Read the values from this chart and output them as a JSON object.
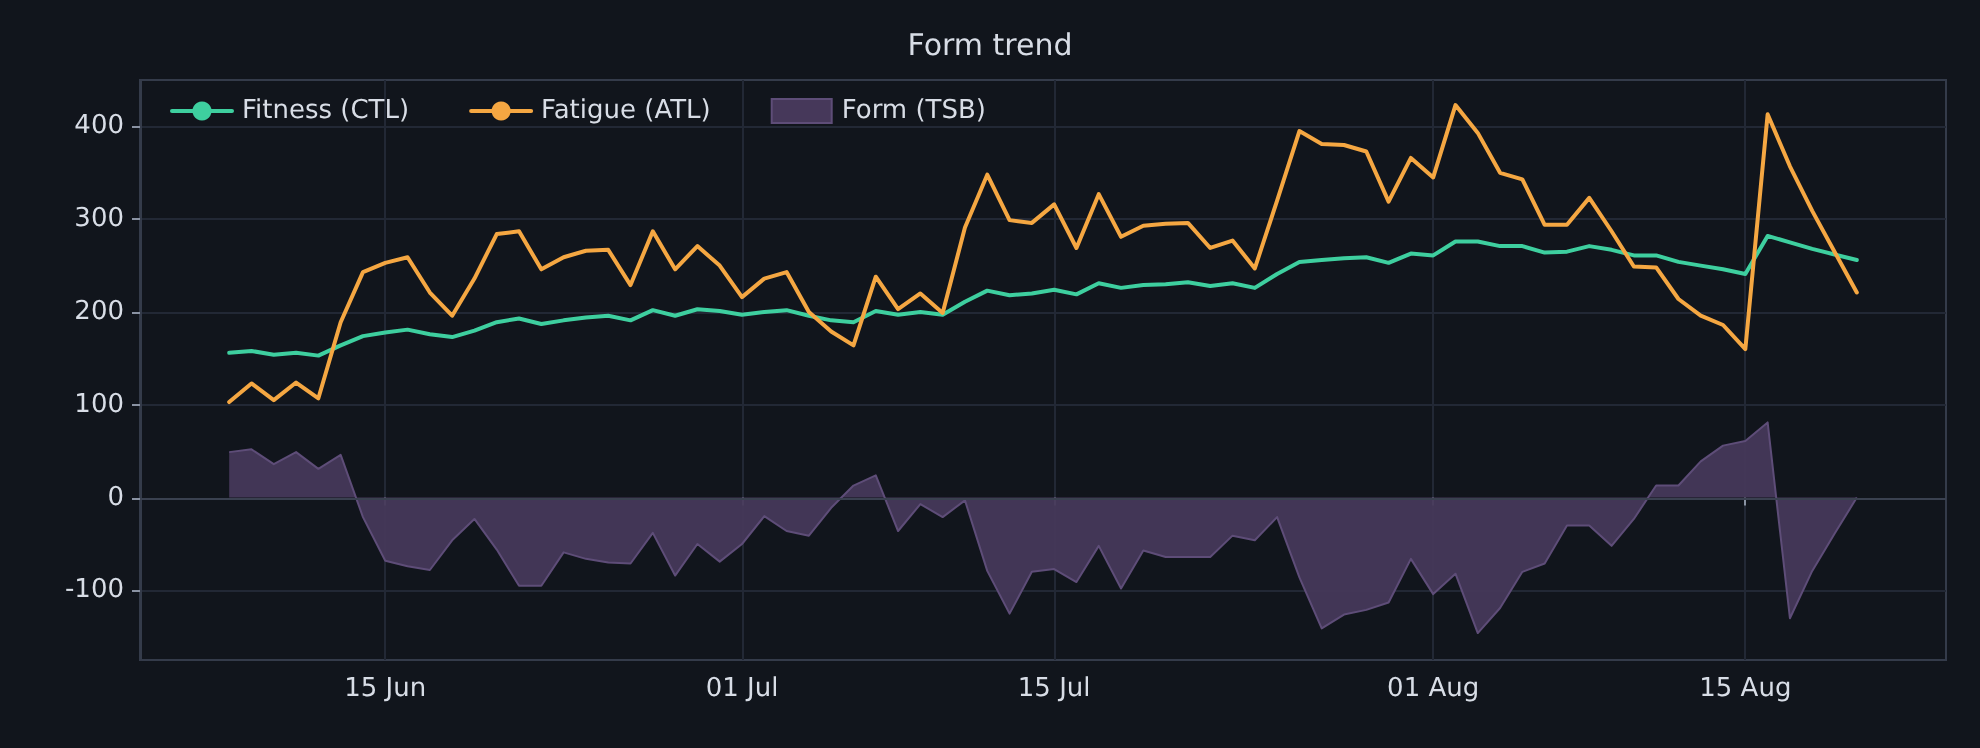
{
  "chart_data": {
    "type": "line",
    "title": "Form trend",
    "x": [
      "--06-08",
      "--06-09",
      "--06-10",
      "--06-11",
      "--06-12",
      "--06-13",
      "--06-14",
      "--06-15",
      "--06-16",
      "--06-17",
      "--06-18",
      "--06-19",
      "--06-20",
      "--06-21",
      "--06-22",
      "--06-23",
      "--06-24",
      "--06-25",
      "--06-26",
      "--06-27",
      "--06-28",
      "--06-29",
      "--06-30",
      "--07-01",
      "--07-02",
      "--07-03",
      "--07-04",
      "--07-05",
      "--07-06",
      "--07-07",
      "--07-08",
      "--07-09",
      "--07-10",
      "--07-11",
      "--07-12",
      "--07-13",
      "--07-14",
      "--07-15",
      "--07-16",
      "--07-17",
      "--07-18",
      "--07-19",
      "--07-20",
      "--07-21",
      "--07-22",
      "--07-23",
      "--07-24",
      "--07-25",
      "--07-26",
      "--07-27",
      "--07-28",
      "--07-29",
      "--07-30",
      "--07-31",
      "--08-01",
      "--08-02",
      "--08-03",
      "--08-04",
      "--08-05",
      "--08-06",
      "--08-07",
      "--08-08",
      "--08-09",
      "--08-10",
      "--08-11",
      "--08-12",
      "--08-13",
      "--08-14",
      "--08-15",
      "--08-16",
      "--08-17",
      "--08-18",
      "--08-19",
      "--08-20"
    ],
    "series": [
      {
        "name": "Fitness (CTL)",
        "color": "#3ecf9f",
        "values": [
          156,
          158,
          154,
          156,
          153,
          164,
          174,
          178,
          181,
          176,
          173,
          180,
          189,
          193,
          187,
          191,
          194,
          196,
          191,
          202,
          196,
          203,
          201,
          197,
          200,
          202,
          196,
          191,
          189,
          201,
          197,
          200,
          197,
          211,
          223,
          218,
          220,
          224,
          219,
          231,
          226,
          229,
          230,
          232,
          228,
          231,
          226,
          241,
          254,
          256,
          258,
          259,
          253,
          263,
          261,
          276,
          276,
          271,
          271,
          264,
          265,
          271,
          267,
          261,
          261,
          254,
          250,
          246,
          241,
          282,
          275,
          268,
          262,
          256
        ]
      },
      {
        "name": "Fatigue (ATL)",
        "color": "#f5a742",
        "values": [
          103,
          123,
          105,
          124,
          107,
          189,
          243,
          253,
          259,
          221,
          196,
          236,
          284,
          287,
          246,
          259,
          266,
          267,
          229,
          287,
          246,
          271,
          250,
          216,
          236,
          243,
          200,
          179,
          164,
          238,
          203,
          220,
          199,
          291,
          348,
          299,
          296,
          316,
          269,
          327,
          281,
          293,
          295,
          296,
          269,
          277,
          247,
          320,
          395,
          381,
          380,
          373,
          319,
          366,
          345,
          423,
          393,
          350,
          343,
          294,
          294,
          323,
          287,
          249,
          248,
          214,
          196,
          186,
          160,
          413,
          357,
          309,
          265,
          221
        ]
      },
      {
        "name": "Form (TSB)",
        "type": "area",
        "color": "#46385a",
        "values": [
          49,
          52,
          36,
          49,
          31,
          46,
          -21,
          -68,
          -74,
          -78,
          -46,
          -23,
          -56,
          -95,
          -95,
          -59,
          -66,
          -70,
          -71,
          -38,
          -84,
          -50,
          -69,
          -50,
          -20,
          -36,
          -41,
          -11,
          13,
          24,
          -36,
          -7,
          -21,
          -3,
          -79,
          -125,
          -80,
          -77,
          -91,
          -52,
          -98,
          -57,
          -64,
          -64,
          -64,
          -41,
          -46,
          -21,
          -86,
          -141,
          -126,
          -121,
          -113,
          -66,
          -104,
          -82,
          -146,
          -119,
          -80,
          -71,
          -30,
          -30,
          -52,
          -23,
          13,
          13,
          39,
          56,
          61,
          81,
          -130,
          -79,
          -39,
          0
        ]
      }
    ],
    "xlim": [
      "--06-04",
      "--08-24"
    ],
    "xticks": [
      {
        "value": "--06-15",
        "label": "15 Jun"
      },
      {
        "value": "--07-01",
        "label": "01 Jul"
      },
      {
        "value": "--07-15",
        "label": "15 Jul"
      },
      {
        "value": "--08-01",
        "label": "01 Aug"
      },
      {
        "value": "--08-15",
        "label": "15 Aug"
      }
    ],
    "ylim": [
      -175,
      450
    ],
    "yticks": [
      -100,
      0,
      100,
      200,
      300,
      400
    ],
    "grid": true,
    "legend": "top left",
    "marker": "none"
  }
}
